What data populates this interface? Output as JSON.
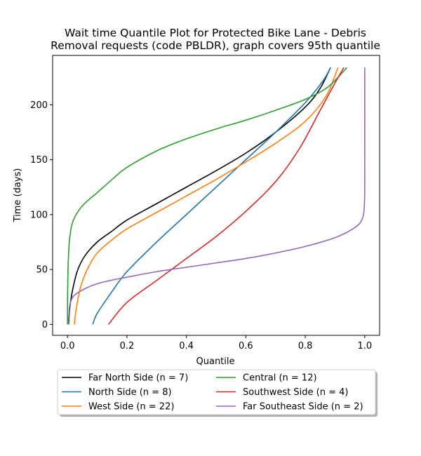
{
  "chart_data": {
    "type": "line",
    "title_line1": "Wait time Quantile Plot for Protected Bike Lane - Debris",
    "title_line2": "Removal  requests (code PBLDR), graph covers 95th quantile",
    "xlabel": "Quantile",
    "ylabel": "Time (days)",
    "xlim": [
      -0.05,
      1.05
    ],
    "ylim": [
      -10,
      245
    ],
    "xticks": [
      "0.0",
      "0.2",
      "0.4",
      "0.6",
      "0.8",
      "1.0"
    ],
    "xtick_values": [
      0,
      0.2,
      0.4,
      0.6,
      0.8,
      1.0
    ],
    "yticks": [
      "0",
      "50",
      "100",
      "150",
      "200"
    ],
    "ytick_values": [
      0,
      50,
      100,
      150,
      200
    ],
    "grid": false,
    "legend_placement": "below plot, two columns",
    "series": [
      {
        "name": "Far North Side (n = 7)",
        "color": "#000000",
        "points": [
          [
            0.004,
            0
          ],
          [
            0.006,
            10
          ],
          [
            0.01,
            20
          ],
          [
            0.02,
            35
          ],
          [
            0.035,
            50
          ],
          [
            0.06,
            63
          ],
          [
            0.1,
            75
          ],
          [
            0.15,
            85
          ],
          [
            0.2,
            95
          ],
          [
            0.3,
            110
          ],
          [
            0.4,
            125
          ],
          [
            0.5,
            140
          ],
          [
            0.6,
            156
          ],
          [
            0.7,
            175
          ],
          [
            0.8,
            198
          ],
          [
            0.85,
            215
          ],
          [
            0.885,
            234
          ]
        ]
      },
      {
        "name": "North Side (n = 8)",
        "color": "#1f77b4",
        "points": [
          [
            0.085,
            0
          ],
          [
            0.1,
            10
          ],
          [
            0.15,
            30
          ],
          [
            0.2,
            48
          ],
          [
            0.3,
            75
          ],
          [
            0.4,
            100
          ],
          [
            0.5,
            125
          ],
          [
            0.6,
            150
          ],
          [
            0.7,
            175
          ],
          [
            0.8,
            202
          ],
          [
            0.86,
            222
          ],
          [
            0.885,
            234
          ]
        ]
      },
      {
        "name": "West Side (n = 22)",
        "color": "#ff7f0e",
        "points": [
          [
            0.023,
            0
          ],
          [
            0.03,
            15
          ],
          [
            0.045,
            35
          ],
          [
            0.07,
            52
          ],
          [
            0.1,
            65
          ],
          [
            0.15,
            77
          ],
          [
            0.2,
            87
          ],
          [
            0.3,
            102
          ],
          [
            0.4,
            117
          ],
          [
            0.5,
            132
          ],
          [
            0.6,
            148
          ],
          [
            0.7,
            165
          ],
          [
            0.8,
            185
          ],
          [
            0.87,
            208
          ],
          [
            0.91,
            234
          ]
        ]
      },
      {
        "name": "Central (n = 12)",
        "color": "#2ca02c",
        "points": [
          [
            0,
            0
          ],
          [
            0,
            20
          ],
          [
            0.001,
            40
          ],
          [
            0.003,
            60
          ],
          [
            0.008,
            80
          ],
          [
            0.02,
            95
          ],
          [
            0.05,
            108
          ],
          [
            0.1,
            120
          ],
          [
            0.15,
            132
          ],
          [
            0.2,
            143
          ],
          [
            0.3,
            158
          ],
          [
            0.4,
            169
          ],
          [
            0.5,
            178
          ],
          [
            0.6,
            186
          ],
          [
            0.7,
            195
          ],
          [
            0.8,
            205
          ],
          [
            0.87,
            215
          ],
          [
            0.91,
            225
          ],
          [
            0.94,
            234
          ]
        ]
      },
      {
        "name": "Southwest Side (n = 4)",
        "color": "#d62728",
        "points": [
          [
            0.138,
            0
          ],
          [
            0.2,
            20
          ],
          [
            0.3,
            40
          ],
          [
            0.4,
            60
          ],
          [
            0.5,
            80
          ],
          [
            0.6,
            103
          ],
          [
            0.7,
            130
          ],
          [
            0.78,
            160
          ],
          [
            0.85,
            195
          ],
          [
            0.9,
            220
          ],
          [
            0.93,
            234
          ]
        ]
      },
      {
        "name": "Far Southeast Side (n = 2)",
        "color": "#9467bd",
        "points": [
          [
            0.003,
            0
          ],
          [
            0.005,
            10
          ],
          [
            0.01,
            20
          ],
          [
            0.03,
            28
          ],
          [
            0.1,
            37
          ],
          [
            0.2,
            43
          ],
          [
            0.3,
            48
          ],
          [
            0.4,
            52
          ],
          [
            0.5,
            56
          ],
          [
            0.6,
            60
          ],
          [
            0.7,
            65
          ],
          [
            0.8,
            71
          ],
          [
            0.9,
            79
          ],
          [
            0.96,
            87
          ],
          [
            0.99,
            95
          ],
          [
            0.999,
            110
          ],
          [
            1.0,
            150
          ],
          [
            1.0,
            234
          ]
        ]
      }
    ]
  }
}
